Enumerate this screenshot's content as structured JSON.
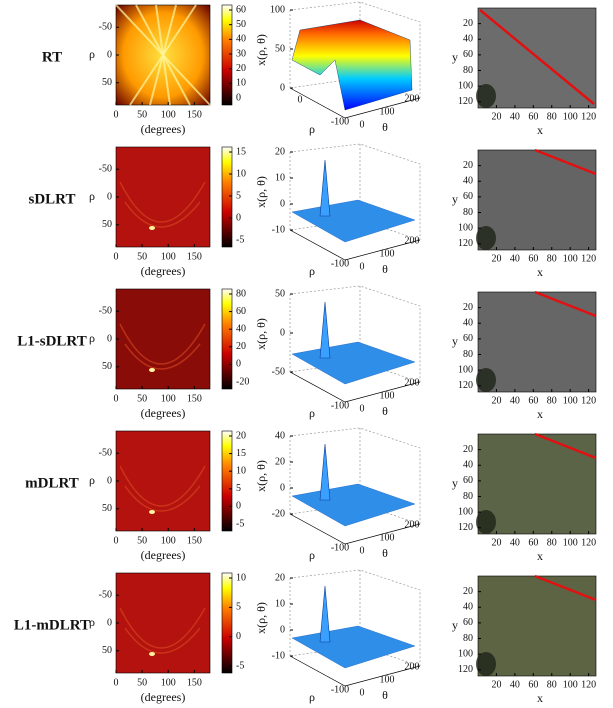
{
  "rows": [
    {
      "label": "RT",
      "heatmap": {
        "ylabel": "ρ",
        "yticks": [
          -50,
          0,
          50
        ],
        "xticks": [
          0,
          50,
          100,
          150
        ],
        "xlabel": "(degrees)",
        "colorbar_ticks": [
          0,
          10,
          20,
          30,
          40,
          50,
          60
        ]
      },
      "surface": {
        "zlabel": "x(ρ, θ)",
        "zticks": [
          0,
          50,
          100
        ],
        "rholabel": "ρ",
        "rho_ticks": [
          0,
          -100
        ],
        "thetalabel": "θ",
        "theta_ticks": [
          0,
          100,
          200
        ]
      },
      "image": {
        "ylabel": "y",
        "yticks": [
          20,
          40,
          60,
          80,
          100,
          120
        ],
        "xlabel": "x",
        "xticks": [
          20,
          40,
          60,
          80,
          100,
          120
        ]
      }
    },
    {
      "label": "sDLRT",
      "heatmap": {
        "ylabel": "ρ",
        "yticks": [
          -50,
          0,
          50
        ],
        "xticks": [
          0,
          50,
          100,
          150
        ],
        "xlabel": "(degrees)",
        "colorbar_ticks": [
          -5,
          0,
          5,
          10,
          15
        ]
      },
      "surface": {
        "zlabel": "x(ρ, θ)",
        "zticks": [
          -10,
          0,
          10,
          20
        ],
        "rholabel": "ρ",
        "rho_ticks": [
          -100
        ],
        "thetalabel": "θ",
        "theta_ticks": [
          0,
          100,
          200
        ]
      },
      "image": {
        "ylabel": "y",
        "yticks": [
          20,
          40,
          60,
          80,
          100,
          120
        ],
        "xlabel": "x",
        "xticks": [
          20,
          40,
          60,
          80,
          100,
          120
        ]
      }
    },
    {
      "label": "L1-sDLRT",
      "heatmap": {
        "ylabel": "ρ",
        "yticks": [
          -50,
          0,
          50
        ],
        "xticks": [
          0,
          50,
          100,
          150
        ],
        "xlabel": "(degrees)",
        "colorbar_ticks": [
          -20,
          0,
          20,
          40,
          60,
          80
        ]
      },
      "surface": {
        "zlabel": "x(ρ, θ)",
        "zticks": [
          -50,
          0,
          50
        ],
        "rholabel": "ρ",
        "rho_ticks": [
          -100
        ],
        "thetalabel": "θ",
        "theta_ticks": [
          0,
          100,
          200
        ]
      },
      "image": {
        "ylabel": "y",
        "yticks": [
          20,
          40,
          60,
          80,
          100,
          120
        ],
        "xlabel": "x",
        "xticks": [
          20,
          40,
          60,
          80,
          100,
          120
        ]
      }
    },
    {
      "label": "mDLRT",
      "heatmap": {
        "ylabel": "ρ",
        "yticks": [
          -50,
          0,
          50
        ],
        "xticks": [
          0,
          50,
          100,
          150
        ],
        "xlabel": "(degrees)",
        "colorbar_ticks": [
          -5,
          0,
          5,
          10,
          15,
          20
        ]
      },
      "surface": {
        "zlabel": "x(ρ, θ)",
        "zticks": [
          -20,
          0,
          20,
          40
        ],
        "rholabel": "ρ",
        "rho_ticks": [
          -100
        ],
        "thetalabel": "θ",
        "theta_ticks": [
          0,
          100,
          200
        ]
      },
      "image": {
        "ylabel": "y",
        "yticks": [
          20,
          40,
          60,
          80,
          100,
          120
        ],
        "xlabel": "x",
        "xticks": [
          20,
          40,
          60,
          80,
          100,
          120
        ]
      }
    },
    {
      "label": "L1-mDLRT",
      "heatmap": {
        "ylabel": "ρ",
        "yticks": [
          -50,
          0,
          50
        ],
        "xticks": [
          0,
          50,
          100,
          150
        ],
        "xlabel": "(degrees)",
        "colorbar_ticks": [
          -5,
          0,
          5,
          10
        ]
      },
      "surface": {
        "zlabel": "x(ρ, θ)",
        "zticks": [
          -10,
          0,
          10,
          20
        ],
        "rholabel": "ρ",
        "rho_ticks": [
          -100
        ],
        "thetalabel": "θ",
        "theta_ticks": [
          0,
          100,
          200
        ]
      },
      "image": {
        "ylabel": "y",
        "yticks": [
          20,
          40,
          60,
          80,
          100,
          120
        ],
        "xlabel": "x",
        "xticks": [
          20,
          40,
          60,
          80,
          100,
          120
        ]
      }
    }
  ]
}
